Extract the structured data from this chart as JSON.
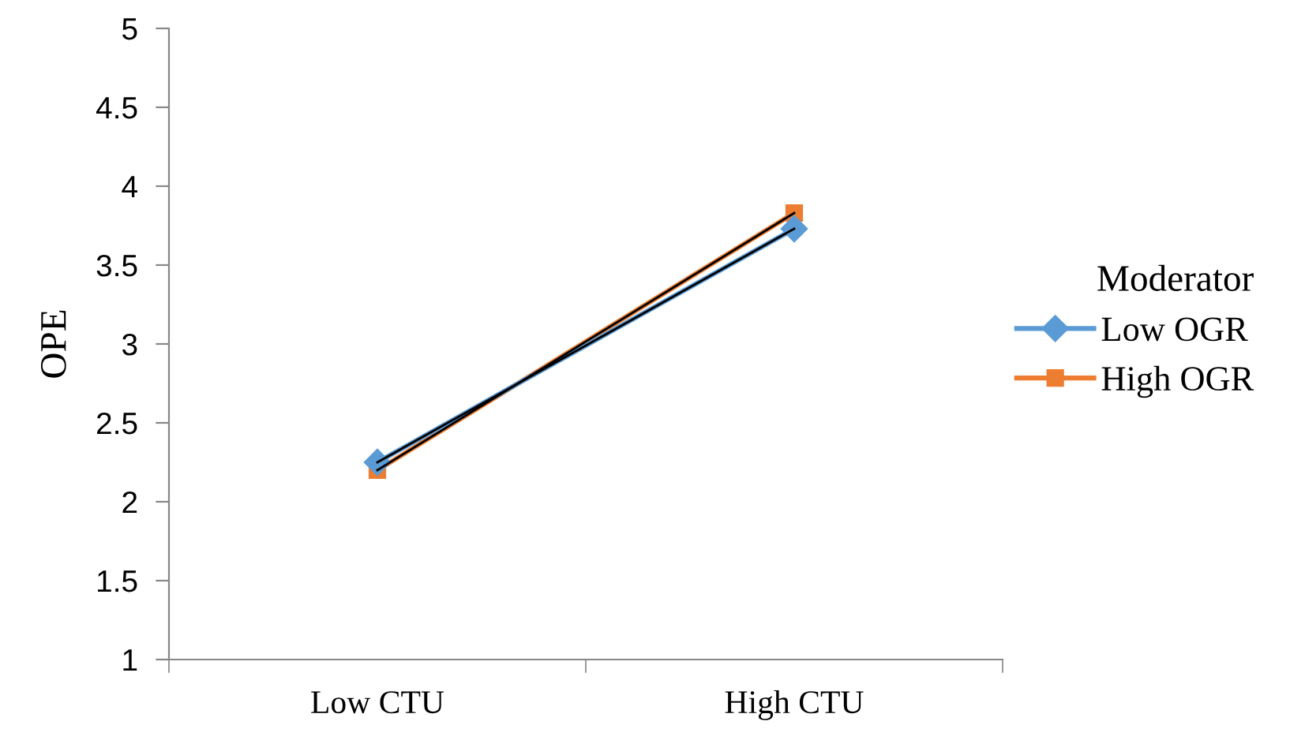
{
  "chart_data": {
    "type": "line",
    "ylabel": "OPE",
    "legend_title": "Moderator",
    "categories": [
      "Low CTU",
      "High CTU"
    ],
    "series": [
      {
        "name": "Low OGR",
        "color": "#5b9bd5",
        "values": [
          2.25,
          3.73
        ],
        "marker": "diamond"
      },
      {
        "name": "High OGR",
        "color": "#ed7d31",
        "values": [
          2.2,
          3.83
        ],
        "marker": "square"
      },
      {
        "color": "#000000",
        "values": [
          2.25,
          3.73
        ],
        "marker": "none"
      },
      {
        "color": "#000000",
        "values": [
          2.2,
          3.83
        ],
        "marker": "none"
      }
    ],
    "ylim": [
      1,
      5
    ],
    "yticks": [
      1,
      1.5,
      2,
      2.5,
      3,
      3.5,
      4,
      4.5,
      5
    ],
    "grid": false,
    "legend": "right",
    "line_style": "solid"
  }
}
